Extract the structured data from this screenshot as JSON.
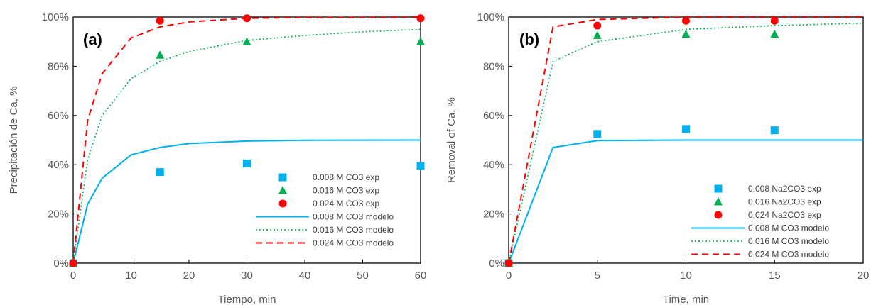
{
  "chart_data": [
    {
      "type": "scatter",
      "panel_label": "(a)",
      "xlabel": "Tiempo, min",
      "ylabel": "Precipitación de Ca, %",
      "xlim": [
        0,
        60
      ],
      "ylim": [
        0,
        100
      ],
      "xticks": [
        0,
        10,
        20,
        30,
        40,
        50,
        60
      ],
      "yticks": [
        "0%",
        "20%",
        "40%",
        "60%",
        "80%",
        "100%"
      ],
      "legend_position": "lower-right",
      "series": [
        {
          "name": "0.008 M CO3 exp",
          "kind": "marker",
          "marker": "square",
          "color": "#00b0f0",
          "x": [
            0,
            15,
            30,
            60
          ],
          "y": [
            0,
            37,
            40.5,
            39.5
          ]
        },
        {
          "name": "0.016 M CO3 exp",
          "kind": "marker",
          "marker": "triangle",
          "color": "#00b050",
          "x": [
            0,
            15,
            30,
            60
          ],
          "y": [
            0,
            84.5,
            90,
            90
          ]
        },
        {
          "name": "0.024 M CO3 exp",
          "kind": "marker",
          "marker": "circle",
          "color": "#ff0000",
          "x": [
            0,
            15,
            30,
            60
          ],
          "y": [
            0,
            98.5,
            99.5,
            99.5
          ]
        },
        {
          "name": "0.008 M CO3 modelo",
          "kind": "line",
          "dash": "solid",
          "color": "#00b0f0",
          "x": [
            0,
            2.5,
            5,
            10,
            15,
            20,
            30,
            40,
            60
          ],
          "y": [
            0,
            24,
            34.5,
            44,
            47,
            48.6,
            49.6,
            49.9,
            50
          ]
        },
        {
          "name": "0.016 M CO3 modelo",
          "kind": "line",
          "dash": "dotted",
          "color": "#00b050",
          "x": [
            0,
            2.5,
            5,
            10,
            15,
            20,
            30,
            40,
            50,
            60
          ],
          "y": [
            0,
            42,
            60,
            75,
            82,
            86,
            90.5,
            92.5,
            94,
            95
          ]
        },
        {
          "name": "0.024 M CO3 modelo",
          "kind": "line",
          "dash": "dashed",
          "color": "#ff0000",
          "x": [
            0,
            2.5,
            5,
            10,
            15,
            20,
            30,
            40,
            60
          ],
          "y": [
            0,
            58,
            77,
            91.5,
            96,
            98,
            99.5,
            99.8,
            100
          ]
        }
      ]
    },
    {
      "type": "scatter",
      "panel_label": "(b)",
      "xlabel": "Time, min",
      "ylabel": "Removal  of Ca, %",
      "xlim": [
        0,
        20
      ],
      "ylim": [
        0,
        100
      ],
      "xticks": [
        0,
        5,
        10,
        15,
        20
      ],
      "yticks": [
        "0%",
        "20%",
        "40%",
        "60%",
        "80%",
        "100%"
      ],
      "legend_position": "lower-right",
      "series": [
        {
          "name": "0.008 Na2CO3 exp",
          "kind": "marker",
          "marker": "square",
          "color": "#00b0f0",
          "x": [
            0,
            5,
            10,
            15
          ],
          "y": [
            0,
            52.5,
            54.5,
            54
          ]
        },
        {
          "name": "0.016 Na2CO3 exp",
          "kind": "marker",
          "marker": "triangle",
          "color": "#00b050",
          "x": [
            0,
            5,
            10,
            15
          ],
          "y": [
            0,
            92.5,
            93,
            93
          ]
        },
        {
          "name": "0.024 Na2CO3 exp",
          "kind": "marker",
          "marker": "circle",
          "color": "#ff0000",
          "x": [
            0,
            5,
            10,
            15
          ],
          "y": [
            0,
            96.5,
            98.5,
            98.5
          ]
        },
        {
          "name": "0.008 M CO3 modelo",
          "kind": "line",
          "dash": "solid",
          "color": "#00b0f0",
          "x": [
            0,
            2.5,
            5,
            10,
            15,
            20
          ],
          "y": [
            0,
            47,
            49.8,
            50,
            50,
            50
          ]
        },
        {
          "name": "0.016 M CO3  modelo",
          "kind": "line",
          "dash": "dotted",
          "color": "#00b050",
          "x": [
            0,
            2.5,
            5,
            10,
            15,
            20
          ],
          "y": [
            0,
            82,
            90,
            95,
            96.5,
            97.5
          ]
        },
        {
          "name": "0.024 M CO3 modelo",
          "kind": "line",
          "dash": "dashed",
          "color": "#ff0000",
          "x": [
            0,
            2.5,
            5,
            10,
            15,
            20
          ],
          "y": [
            0,
            96,
            99,
            100,
            100,
            100
          ]
        }
      ]
    }
  ]
}
